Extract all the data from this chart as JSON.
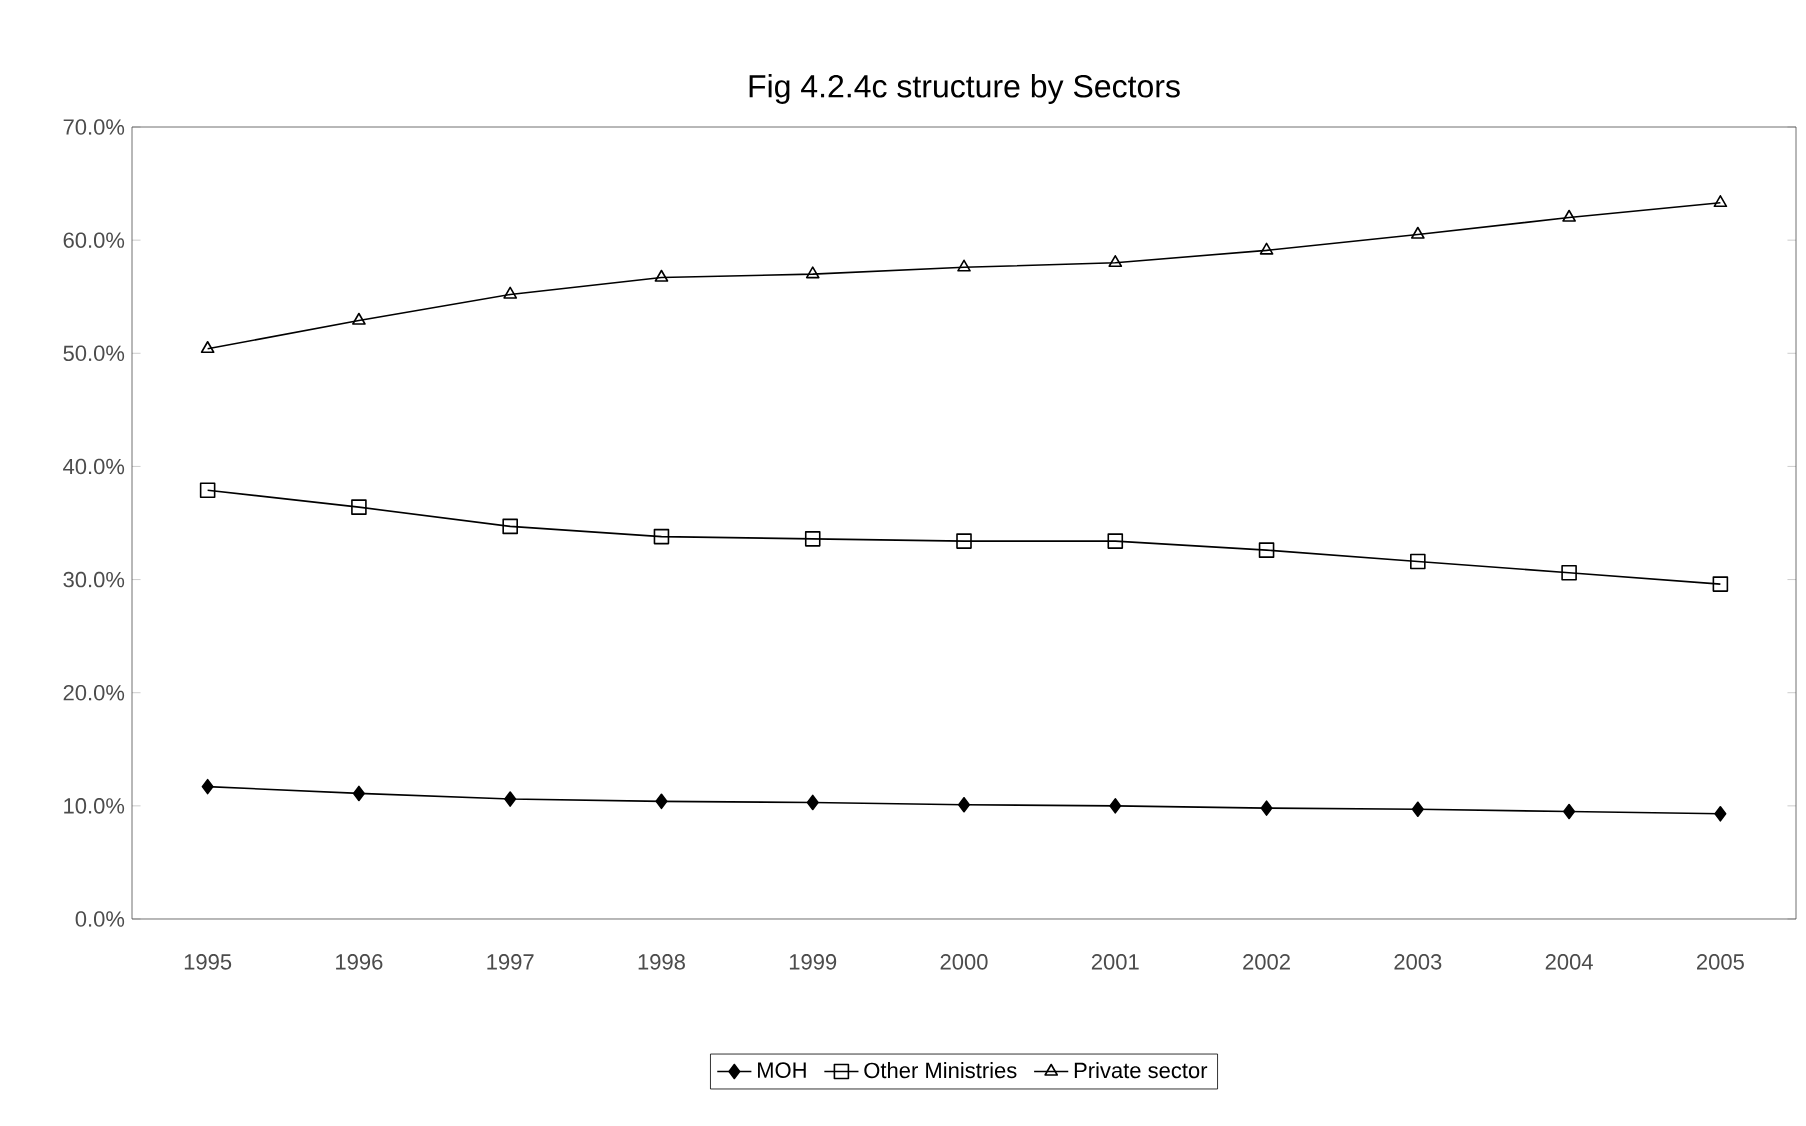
{
  "chart_data": {
    "type": "line",
    "title": "Fig  4.2.4c  structure  by  Sectors",
    "categories": [
      "1995",
      "1996",
      "1997",
      "1998",
      "1999",
      "2000",
      "2001",
      "2002",
      "2003",
      "2004",
      "2005"
    ],
    "series": [
      {
        "name": "MOH",
        "color": "#000000",
        "marker": "diamond",
        "values": [
          11.7,
          11.1,
          10.6,
          10.4,
          10.3,
          10.1,
          10.0,
          9.8,
          9.7,
          9.5,
          9.3
        ]
      },
      {
        "name": "Other Ministries",
        "color": "#000000",
        "marker": "square",
        "values": [
          37.9,
          36.4,
          34.7,
          33.8,
          33.6,
          33.4,
          33.4,
          32.6,
          31.6,
          30.6,
          29.6
        ]
      },
      {
        "name": "Private sector",
        "color": "#000000",
        "marker": "triangle",
        "values": [
          50.4,
          52.9,
          55.2,
          56.7,
          57.0,
          57.6,
          58.0,
          59.1,
          60.5,
          62.0,
          63.3
        ]
      }
    ],
    "ylim": [
      0,
      70
    ],
    "yticks": [
      {
        "value": 0,
        "label": "0.0%"
      },
      {
        "value": 10,
        "label": "10.0%"
      },
      {
        "value": 20,
        "label": "20.0%"
      },
      {
        "value": 30,
        "label": "30.0%"
      },
      {
        "value": 40,
        "label": "40.0%"
      },
      {
        "value": 50,
        "label": "50.0%"
      },
      {
        "value": 60,
        "label": "60.0%"
      },
      {
        "value": 70,
        "label": "70.0%"
      }
    ],
    "grid": false,
    "legend": "bottom",
    "line_style": "solid"
  }
}
